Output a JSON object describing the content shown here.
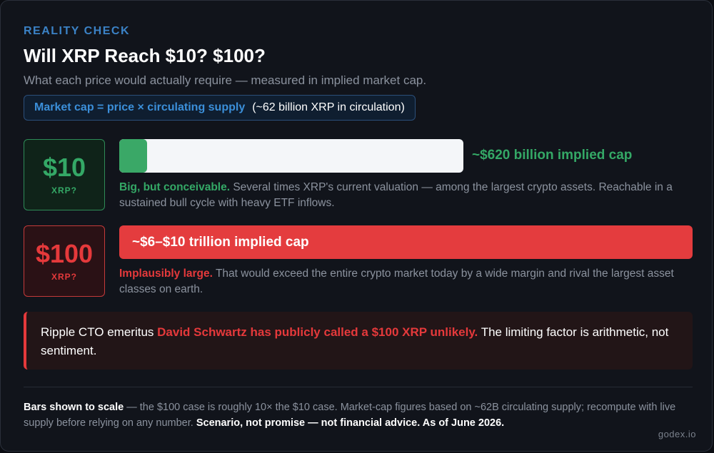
{
  "header": {
    "eyebrow": "REALITY CHECK",
    "title": "Will XRP Reach $10? $100?",
    "subtitle": "What each price would actually require — measured in implied market cap."
  },
  "formula": {
    "key": "Market cap = price × circulating supply",
    "note": "(~62 billion XRP in circulation)"
  },
  "scenarios": [
    {
      "price": "$10",
      "unit": "XRP?",
      "cap_label": "~$620 billion implied cap",
      "bar_fraction": 0.08,
      "color": "#34a866",
      "lead": "Big, but conceivable.",
      "body": "Several times XRP's current valuation — among the largest crypto assets. Reachable in a sustained bull cycle with heavy ETF inflows."
    },
    {
      "price": "$100",
      "unit": "XRP?",
      "cap_label": "~$6–$10 trillion implied cap",
      "bar_fraction": 1.0,
      "color": "#e5393b",
      "lead": "Implausibly large.",
      "body": "That would exceed the entire crypto market today by a wide margin and rival the largest asset classes on earth."
    }
  ],
  "quote": {
    "intro": "Ripple CTO emeritus",
    "highlight": "David Schwartz has publicly called a $100 XRP unlikely.",
    "outro": "The limiting factor is arithmetic, not sentiment."
  },
  "footer": {
    "bold1": "Bars shown to scale",
    "text": "— the $100 case is roughly 10× the $10 case. Market-cap figures based on ~62B circulating supply; recompute with live supply before relying on any number.",
    "bold2": "Scenario, not promise — not financial advice. As of June 2026."
  },
  "brand": "godex.io"
}
